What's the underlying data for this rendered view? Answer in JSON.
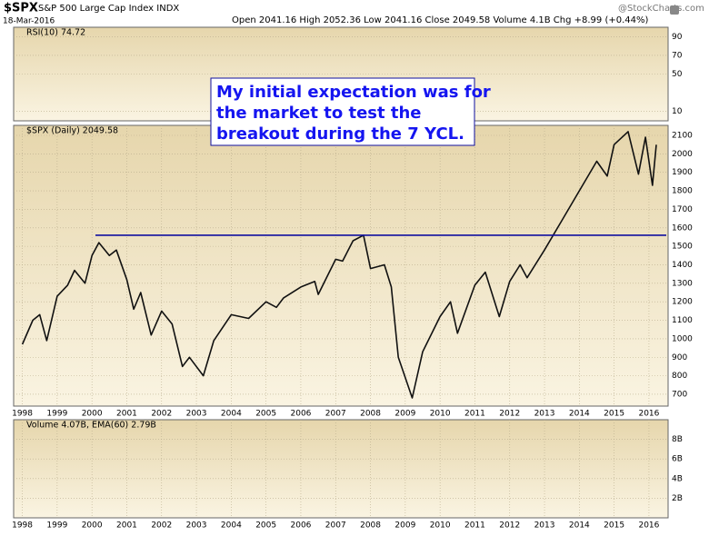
{
  "header": {
    "symbol": "$SPX",
    "name": "S&P 500 Large Cap Index INDX",
    "date": "18-Mar-2016",
    "quote": "Open 2041.16  High 2052.36  Low 2041.16  Close 2049.58  Volume 4.1B  Chg +8.99 (+0.44%)",
    "brand": "@StockCharts.com"
  },
  "chart_data": [
    {
      "type": "indicator",
      "label": "RSI(10) 74.72",
      "ylim": [
        0,
        100
      ],
      "yticks": [
        90,
        70,
        50,
        10
      ],
      "xlim": [
        1997.75,
        2016.55
      ],
      "grid": true
    },
    {
      "type": "line",
      "label": "$SPX (Daily) 2049.58",
      "xlim": [
        1997.75,
        2016.55
      ],
      "ylim": [
        636,
        2154
      ],
      "xticks": [
        1998,
        1999,
        2000,
        2001,
        2002,
        2003,
        2004,
        2005,
        2006,
        2007,
        2008,
        2009,
        2010,
        2011,
        2012,
        2013,
        2014,
        2015,
        2016
      ],
      "yticks": [
        700,
        800,
        900,
        1000,
        1100,
        1200,
        1300,
        1400,
        1500,
        1600,
        1700,
        1800,
        1900,
        2000,
        2100
      ],
      "grid": true,
      "series": [
        {
          "color": "#111111",
          "x": [
            1998.0,
            1998.3,
            1998.5,
            1998.7,
            1999.0,
            1999.3,
            1999.5,
            1999.8,
            2000.0,
            2000.2,
            2000.5,
            2000.7,
            2001.0,
            2001.2,
            2001.4,
            2001.7,
            2002.0,
            2002.3,
            2002.6,
            2002.8,
            2003.2,
            2003.5,
            2004.0,
            2004.5,
            2005.0,
            2005.3,
            2005.5,
            2006.0,
            2006.4,
            2006.5,
            2007.0,
            2007.2,
            2007.5,
            2007.8,
            2008.0,
            2008.4,
            2008.6,
            2008.8,
            2009.2,
            2009.5,
            2010.0,
            2010.3,
            2010.5,
            2011.0,
            2011.3,
            2011.7,
            2012.0,
            2012.3,
            2012.5,
            2013.0,
            2013.5,
            2014.0,
            2014.5,
            2014.8,
            2015.0,
            2015.4,
            2015.7,
            2015.9,
            2016.1,
            2016.21
          ],
          "values": [
            970,
            1100,
            1130,
            990,
            1230,
            1290,
            1370,
            1300,
            1450,
            1520,
            1450,
            1480,
            1320,
            1160,
            1250,
            1020,
            1150,
            1080,
            850,
            900,
            800,
            990,
            1130,
            1110,
            1200,
            1170,
            1220,
            1280,
            1310,
            1240,
            1430,
            1420,
            1530,
            1560,
            1380,
            1400,
            1280,
            900,
            680,
            930,
            1120,
            1200,
            1030,
            1290,
            1360,
            1120,
            1310,
            1400,
            1330,
            1480,
            1640,
            1800,
            1960,
            1880,
            2050,
            2120,
            1890,
            2090,
            1830,
            2049.58
          ]
        }
      ],
      "hline": {
        "value": 1560,
        "x": 2000.1,
        "color": "#1010a0"
      },
      "annotation": [
        "My initial expectation was for",
        "the market to test the",
        "breakout during the 7 YCL."
      ]
    },
    {
      "type": "indicator",
      "label": "Volume 4.07B, EMA(60) 2.79B",
      "xlim": [
        1997.75,
        2016.55
      ],
      "ylim": [
        0,
        10
      ],
      "xticks": [
        1998,
        1999,
        2000,
        2001,
        2002,
        2003,
        2004,
        2005,
        2006,
        2007,
        2008,
        2009,
        2010,
        2011,
        2012,
        2013,
        2014,
        2015,
        2016
      ],
      "yticks": [
        {
          "value": 8,
          "label": "8B"
        },
        {
          "value": 6,
          "label": "6B"
        },
        {
          "value": 4,
          "label": "4B"
        },
        {
          "value": 2,
          "label": "2B"
        }
      ],
      "grid": true
    }
  ]
}
